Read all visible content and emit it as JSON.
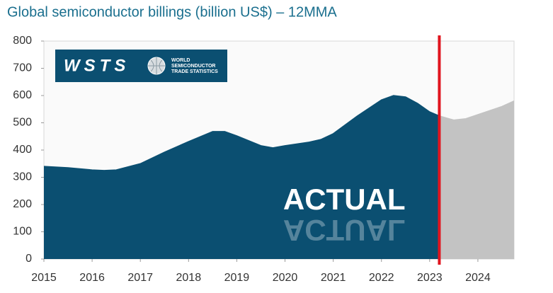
{
  "chart_data": {
    "type": "area",
    "title": "Global semiconductor billings (billion US$) – 12MMA",
    "x": [
      2015,
      2015.5,
      2016,
      2016.25,
      2016.5,
      2017,
      2017.5,
      2018,
      2018.5,
      2018.75,
      2019,
      2019.5,
      2019.75,
      2020,
      2020.5,
      2020.75,
      2021,
      2021.5,
      2022,
      2022.25,
      2022.5,
      2022.75,
      2023,
      2023.2,
      2023.5,
      2023.75,
      2024,
      2024.5,
      2024.75
    ],
    "series": [
      {
        "name": "ACTUAL",
        "color": "#0b4f71",
        "values": [
          340,
          335,
          327,
          325,
          327,
          350,
          392,
          431,
          468,
          468,
          452,
          416,
          408,
          416,
          429,
          439,
          460,
          525,
          584,
          600,
          595,
          571,
          540,
          525,
          null,
          null,
          null,
          null,
          null
        ]
      },
      {
        "color": "#c3c3c3",
        "values": [
          null,
          null,
          null,
          null,
          null,
          null,
          null,
          null,
          null,
          null,
          null,
          null,
          null,
          null,
          null,
          null,
          null,
          null,
          null,
          null,
          null,
          null,
          null,
          525,
          510,
          515,
          530,
          560,
          580
        ]
      }
    ],
    "xlim": [
      2015,
      2024.75
    ],
    "xticks": [
      2015,
      2016,
      2017,
      2018,
      2019,
      2020,
      2021,
      2022,
      2023,
      2024
    ],
    "ylim": [
      0,
      800
    ],
    "yticks": [
      0,
      100,
      200,
      300,
      400,
      500,
      600,
      700,
      800
    ],
    "divider_color": "#e0141e"
  },
  "logo": {
    "mark": "WSTS",
    "lines": [
      "WORLD",
      "SEMICONDUCTOR",
      "TRADE STATISTICS"
    ]
  }
}
